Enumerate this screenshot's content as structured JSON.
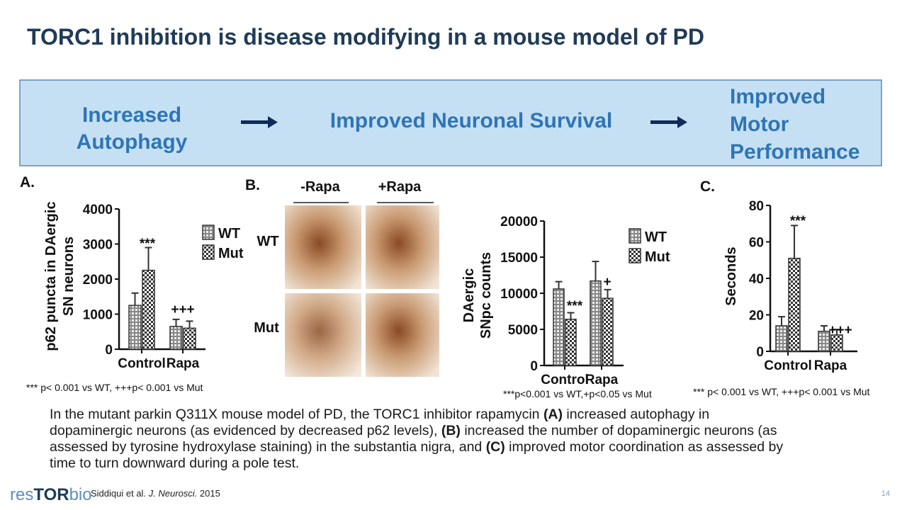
{
  "title": "TORC1 inhibition is disease modifying in a mouse model of PD",
  "banner": {
    "steps": [
      [
        "Increased",
        "Autophagy"
      ],
      [
        "Improved Neuronal Survival"
      ],
      [
        "Improved",
        "Motor",
        "Performance"
      ]
    ]
  },
  "panels": [
    "A.",
    "B.",
    "C."
  ],
  "images": {
    "columns": [
      "-Rapa",
      "+Rapa"
    ],
    "rows": [
      "WT",
      "Mut"
    ]
  },
  "chart_data": [
    {
      "type": "bar",
      "ylabel": [
        "p62 puncta in DAergic",
        "SN neurons"
      ],
      "categories": [
        "Control",
        "Rapa"
      ],
      "series": [
        {
          "name": "WT",
          "pattern": "grid",
          "color": "#333333",
          "values": [
            1250,
            650
          ],
          "errors": [
            350,
            200
          ]
        },
        {
          "name": "Mut",
          "pattern": "checker",
          "color": "#333333",
          "values": [
            2250,
            600
          ],
          "errors": [
            650,
            200
          ]
        }
      ],
      "ylim": [
        0,
        4000
      ],
      "yticks": [
        0,
        1000,
        2000,
        3000,
        4000
      ],
      "legend": true,
      "annotations": [
        "***",
        "+++"
      ],
      "note": "*** p< 0.001 vs WT, +++p< 0.001 vs  Mut"
    },
    {
      "type": "bar",
      "ylabel": [
        "DAergic",
        "SNpc counts"
      ],
      "categories": [
        "Control",
        "Rapa"
      ],
      "series": [
        {
          "name": "WT",
          "pattern": "grid",
          "color": "#333333",
          "values": [
            10600,
            11700
          ],
          "errors": [
            1000,
            2700
          ]
        },
        {
          "name": "Mut",
          "pattern": "checker",
          "color": "#333333",
          "values": [
            6400,
            9300
          ],
          "errors": [
            900,
            1200
          ]
        }
      ],
      "ylim": [
        0,
        20000
      ],
      "yticks": [
        0,
        5000,
        10000,
        15000,
        20000
      ],
      "legend": true,
      "annotations": [
        "***",
        "+"
      ],
      "note": "***p<0.001 vs WT,+p<0.05 vs Mut"
    },
    {
      "type": "bar",
      "ylabel": [
        "Seconds"
      ],
      "categories": [
        "Control",
        "Rapa"
      ],
      "series": [
        {
          "name": "WT",
          "pattern": "grid",
          "color": "#333333",
          "values": [
            14,
            11
          ],
          "errors": [
            5,
            3
          ]
        },
        {
          "name": "Mut",
          "pattern": "checker",
          "color": "#333333",
          "values": [
            51,
            9
          ],
          "errors": [
            18,
            3
          ]
        }
      ],
      "ylim": [
        0,
        80
      ],
      "yticks": [
        0,
        20,
        40,
        60,
        80
      ],
      "legend": false,
      "annotations": [
        "***",
        "+++"
      ],
      "note": "*** p< 0.001 vs WT, +++p< 0.001 vs  Mut"
    }
  ],
  "caption": [
    "In the mutant parkin Q311X mouse model of PD, the TORC1 inhibitor rapamycin ",
    "(A)",
    " increased autophagy in dopaminergic neurons (as evidenced by decreased p62 levels), ",
    "(B)",
    " increased the number of dopaminergic neurons (as assessed by tyrosine hydroxylase staining) in the substantia nigra, and ",
    "(C)",
    " improved motor coordination as assessed by time to turn downward during a pole test."
  ],
  "footer": {
    "logo": [
      "res",
      "TOR",
      "bio"
    ],
    "citation": [
      "Siddiqui et al. ",
      "J. Neurosci.",
      " 2015"
    ],
    "page": "14"
  }
}
